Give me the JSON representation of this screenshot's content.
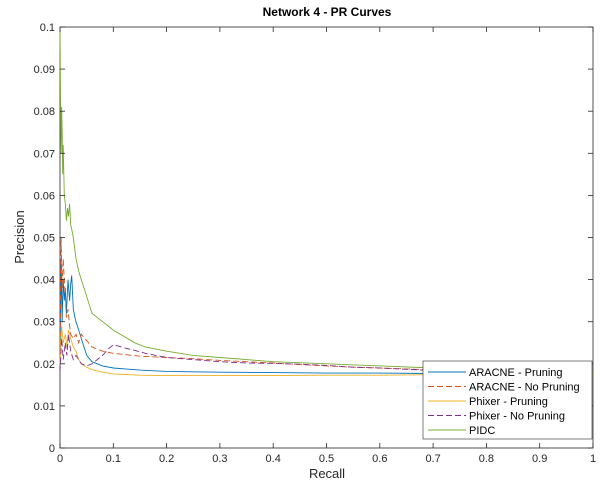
{
  "chart_data": {
    "type": "line",
    "title": "Network 4 - PR Curves",
    "xlabel": "Recall",
    "ylabel": "Precision",
    "xlim": [
      0,
      1
    ],
    "ylim": [
      0,
      0.1
    ],
    "xticks": [
      0,
      0.1,
      0.2,
      0.3,
      0.4,
      0.5,
      0.6,
      0.7,
      0.8,
      0.9,
      1
    ],
    "yticks": [
      0,
      0.01,
      0.02,
      0.03,
      0.04,
      0.05,
      0.06,
      0.07,
      0.08,
      0.09,
      0.1
    ],
    "xtick_labels": [
      "0",
      "0.1",
      "0.2",
      "0.3",
      "0.4",
      "0.5",
      "0.6",
      "0.7",
      "0.8",
      "0.9",
      "1"
    ],
    "ytick_labels": [
      "0",
      "0.01",
      "0.02",
      "0.03",
      "0.04",
      "0.05",
      "0.06",
      "0.07",
      "0.08",
      "0.09",
      "0.1"
    ],
    "grid": false,
    "legend_position": "bottom-right",
    "series": [
      {
        "name": "ARACNE - Pruning",
        "color": "#0072BD",
        "dash": "solid",
        "x": [
          0,
          0.002,
          0.004,
          0.006,
          0.008,
          0.01,
          0.012,
          0.015,
          0.018,
          0.02,
          0.022,
          0.025,
          0.028,
          0.03,
          0.035,
          0.04,
          0.05,
          0.06,
          0.08,
          0.1,
          0.15,
          0.2,
          0.3,
          0.4,
          0.5,
          0.6,
          0.7,
          0.8,
          0.9,
          1.0
        ],
        "y": [
          0.02,
          0.045,
          0.03,
          0.04,
          0.035,
          0.038,
          0.032,
          0.04,
          0.035,
          0.039,
          0.041,
          0.033,
          0.031,
          0.03,
          0.028,
          0.026,
          0.022,
          0.0205,
          0.0195,
          0.019,
          0.0185,
          0.0182,
          0.018,
          0.0179,
          0.0178,
          0.0178,
          0.0177,
          0.0177,
          0.0177,
          0.0176
        ]
      },
      {
        "name": "ARACNE - No Pruning",
        "color": "#D95319",
        "dash": "dashed",
        "x": [
          0,
          0.002,
          0.004,
          0.006,
          0.008,
          0.01,
          0.012,
          0.015,
          0.018,
          0.02,
          0.025,
          0.03,
          0.035,
          0.04,
          0.05,
          0.06,
          0.08,
          0.1,
          0.15,
          0.2,
          0.25,
          0.3,
          0.35,
          0.4,
          0.45,
          0.5,
          0.55,
          0.6,
          0.65,
          0.7,
          0.8,
          0.9,
          1.0
        ],
        "y": [
          0.02,
          0.05,
          0.038,
          0.045,
          0.04,
          0.036,
          0.031,
          0.033,
          0.029,
          0.027,
          0.026,
          0.027,
          0.025,
          0.027,
          0.0255,
          0.024,
          0.023,
          0.0225,
          0.0218,
          0.0215,
          0.0212,
          0.0208,
          0.0205,
          0.0202,
          0.0198,
          0.0195,
          0.0192,
          0.019,
          0.0188,
          0.0185,
          0.018,
          0.0177,
          0.0176
        ]
      },
      {
        "name": "Phixer - Pruning",
        "color": "#EDB120",
        "dash": "solid",
        "x": [
          0,
          0.003,
          0.006,
          0.01,
          0.013,
          0.016,
          0.02,
          0.025,
          0.03,
          0.035,
          0.04,
          0.05,
          0.06,
          0.08,
          0.1,
          0.15,
          0.2,
          0.3,
          0.4,
          0.5,
          0.6,
          0.7,
          0.8,
          0.9,
          1.0
        ],
        "y": [
          0.02,
          0.029,
          0.025,
          0.027,
          0.024,
          0.028,
          0.026,
          0.024,
          0.023,
          0.021,
          0.02,
          0.0192,
          0.0186,
          0.018,
          0.0176,
          0.0173,
          0.0172,
          0.0172,
          0.0172,
          0.0173,
          0.0173,
          0.0174,
          0.0174,
          0.0175,
          0.0175
        ]
      },
      {
        "name": "Phixer - No Pruning",
        "color": "#7E2F8E",
        "dash": "dashed",
        "x": [
          0,
          0.003,
          0.006,
          0.01,
          0.013,
          0.016,
          0.02,
          0.025,
          0.03,
          0.04,
          0.05,
          0.06,
          0.07,
          0.08,
          0.09,
          0.1,
          0.11,
          0.12,
          0.14,
          0.16,
          0.18,
          0.2,
          0.25,
          0.3,
          0.35,
          0.4,
          0.45,
          0.5,
          0.55,
          0.6,
          0.65,
          0.7,
          0.8,
          0.9,
          1.0
        ],
        "y": [
          0.018,
          0.026,
          0.021,
          0.025,
          0.022,
          0.027,
          0.023,
          0.021,
          0.022,
          0.02,
          0.0195,
          0.02,
          0.021,
          0.022,
          0.0235,
          0.0245,
          0.0242,
          0.0238,
          0.0232,
          0.0225,
          0.022,
          0.0215,
          0.021,
          0.0205,
          0.0202,
          0.0201,
          0.0199,
          0.0196,
          0.0192,
          0.019,
          0.0187,
          0.0184,
          0.018,
          0.0178,
          0.0177
        ]
      },
      {
        "name": "PIDC",
        "color": "#77AC30",
        "dash": "solid",
        "x": [
          0,
          0.001,
          0.002,
          0.003,
          0.004,
          0.005,
          0.006,
          0.008,
          0.01,
          0.012,
          0.014,
          0.016,
          0.018,
          0.02,
          0.022,
          0.025,
          0.028,
          0.03,
          0.035,
          0.04,
          0.045,
          0.05,
          0.055,
          0.06,
          0.07,
          0.08,
          0.09,
          0.1,
          0.12,
          0.14,
          0.16,
          0.18,
          0.2,
          0.25,
          0.3,
          0.35,
          0.4,
          0.5,
          0.6,
          0.7,
          0.8,
          0.9,
          1.0
        ],
        "y": [
          0.1,
          0.083,
          0.07,
          0.081,
          0.076,
          0.065,
          0.072,
          0.06,
          0.058,
          0.054,
          0.057,
          0.055,
          0.058,
          0.053,
          0.052,
          0.05,
          0.047,
          0.045,
          0.042,
          0.04,
          0.038,
          0.036,
          0.034,
          0.032,
          0.031,
          0.03,
          0.029,
          0.028,
          0.0265,
          0.025,
          0.024,
          0.0235,
          0.023,
          0.022,
          0.0215,
          0.021,
          0.0205,
          0.02,
          0.0195,
          0.019,
          0.0185,
          0.018,
          0.0178
        ]
      }
    ]
  }
}
